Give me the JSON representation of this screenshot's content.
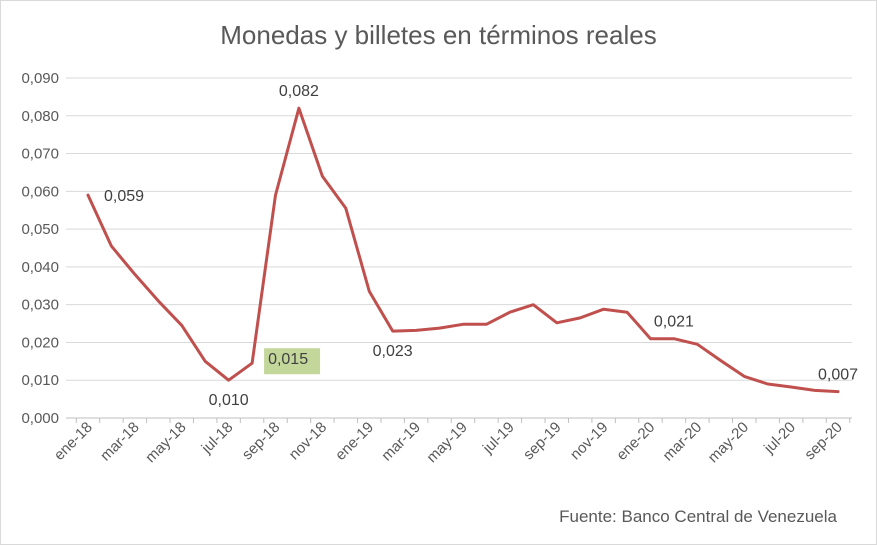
{
  "chart_data": {
    "type": "line",
    "title": "Monedas y billetes en términos reales",
    "source": "Fuente: Banco Central de Venezuela",
    "xlabel": "",
    "ylabel": "",
    "ylim": [
      0,
      0.09
    ],
    "yticks": [
      "0,000",
      "0,010",
      "0,020",
      "0,030",
      "0,040",
      "0,050",
      "0,060",
      "0,070",
      "0,080",
      "0,090"
    ],
    "x": [
      "ene-18",
      "feb-18",
      "mar-18",
      "abr-18",
      "may-18",
      "jun-18",
      "jul-18",
      "ago-18",
      "sep-18",
      "oct-18",
      "nov-18",
      "dic-18",
      "ene-19",
      "feb-19",
      "mar-19",
      "abr-19",
      "may-19",
      "jun-19",
      "jul-19",
      "ago-19",
      "sep-19",
      "oct-19",
      "nov-19",
      "dic-19",
      "ene-20",
      "feb-20",
      "mar-20",
      "abr-20",
      "may-20",
      "jun-20",
      "jul-20",
      "ago-20",
      "sep-20"
    ],
    "xtick_labels": [
      "ene-18",
      "mar-18",
      "may-18",
      "jul-18",
      "sep-18",
      "nov-18",
      "ene-19",
      "mar-19",
      "may-19",
      "jul-19",
      "sep-19",
      "nov-19",
      "ene-20",
      "mar-20",
      "may-20",
      "jul-20",
      "sep-20"
    ],
    "series": [
      {
        "color": "#c0504d",
        "values": [
          0.059,
          0.0455,
          0.038,
          0.031,
          0.0245,
          0.015,
          0.01,
          0.0145,
          0.059,
          0.082,
          0.064,
          0.0555,
          0.0335,
          0.023,
          0.0232,
          0.0238,
          0.0248,
          0.0248,
          0.028,
          0.03,
          0.0252,
          0.0265,
          0.0288,
          0.028,
          0.021,
          0.021,
          0.0195,
          0.0152,
          0.011,
          0.009,
          0.0082,
          0.0073,
          0.007
        ]
      }
    ],
    "data_labels": [
      {
        "index": 0,
        "text": "0,059",
        "pos": "right"
      },
      {
        "index": 6,
        "text": "0,010",
        "pos": "below"
      },
      {
        "index": 7,
        "text": "0,015",
        "pos": "right-highlight"
      },
      {
        "index": 9,
        "text": "0,082",
        "pos": "above"
      },
      {
        "index": 13,
        "text": "0,023",
        "pos": "below"
      },
      {
        "index": 25,
        "text": "0,021",
        "pos": "above"
      },
      {
        "index": 32,
        "text": "0,007",
        "pos": "above"
      }
    ],
    "highlight_color": "#c4d79b",
    "grid": true,
    "legend": "none"
  }
}
